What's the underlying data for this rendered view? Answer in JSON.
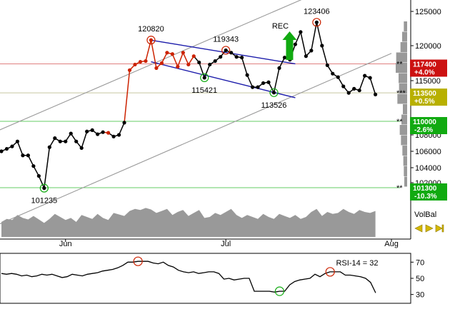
{
  "chart_data": [
    {
      "type": "line",
      "title": "",
      "xlabel": "",
      "ylabel": "",
      "ylim": [
        100000,
        126000
      ],
      "yticks": [
        102000,
        104000,
        106000,
        108000,
        110000,
        115000,
        120000,
        125000
      ],
      "x_tick_labels": [
        {
          "label": "Jun",
          "day": 13
        },
        {
          "label": "Jul",
          "day": 43
        },
        {
          "label": "Aug",
          "day": 74
        }
      ],
      "series": [
        {
          "values": [
            {
              "d": 1,
              "v": 106000
            },
            {
              "d": 2,
              "v": 106300
            },
            {
              "d": 3,
              "v": 106600
            },
            {
              "d": 4,
              "v": 107200
            },
            {
              "d": 5,
              "v": 105500
            },
            {
              "d": 6,
              "v": 105500
            },
            {
              "d": 7,
              "v": 104200
            },
            {
              "d": 8,
              "v": 102900
            },
            {
              "d": 9,
              "v": 101235
            },
            {
              "d": 10,
              "v": 106500
            },
            {
              "d": 11,
              "v": 107600
            },
            {
              "d": 12,
              "v": 107200
            },
            {
              "d": 13,
              "v": 107200
            },
            {
              "d": 14,
              "v": 108200
            },
            {
              "d": 15,
              "v": 107200
            },
            {
              "d": 16,
              "v": 106400
            },
            {
              "d": 17,
              "v": 108500
            },
            {
              "d": 18,
              "v": 108700
            },
            {
              "d": 19,
              "v": 108100
            },
            {
              "d": 20,
              "v": 108400
            },
            {
              "d": 21,
              "v": 108300
            },
            {
              "d": 22,
              "v": 107800
            },
            {
              "d": 23,
              "v": 108000
            },
            {
              "d": 24,
              "v": 109800
            },
            {
              "d": 25,
              "v": 116500
            },
            {
              "d": 26,
              "v": 117300
            },
            {
              "d": 27,
              "v": 117700
            },
            {
              "d": 28,
              "v": 117800
            },
            {
              "d": 29,
              "v": 120820
            },
            {
              "d": 30,
              "v": 116800
            },
            {
              "d": 31,
              "v": 117500
            },
            {
              "d": 32,
              "v": 119000
            },
            {
              "d": 33,
              "v": 118800
            },
            {
              "d": 34,
              "v": 117000
            },
            {
              "d": 35,
              "v": 119000
            },
            {
              "d": 36,
              "v": 117300
            },
            {
              "d": 37,
              "v": 118500
            },
            {
              "d": 38,
              "v": 117600
            },
            {
              "d": 39,
              "v": 115421
            },
            {
              "d": 40,
              "v": 117300
            },
            {
              "d": 41,
              "v": 117800
            },
            {
              "d": 42,
              "v": 118400
            },
            {
              "d": 43,
              "v": 119343
            },
            {
              "d": 44,
              "v": 119000
            },
            {
              "d": 45,
              "v": 118400
            },
            {
              "d": 46,
              "v": 118300
            },
            {
              "d": 47,
              "v": 115800
            },
            {
              "d": 48,
              "v": 114200
            },
            {
              "d": 49,
              "v": 114200
            },
            {
              "d": 50,
              "v": 114700
            },
            {
              "d": 51,
              "v": 114800
            },
            {
              "d": 52,
              "v": 113526
            },
            {
              "d": 53,
              "v": 116800
            },
            {
              "d": 54,
              "v": 118300
            },
            {
              "d": 55,
              "v": 118000
            },
            {
              "d": 56,
              "v": 120200
            },
            {
              "d": 57,
              "v": 122000
            },
            {
              "d": 58,
              "v": 118500
            },
            {
              "d": 59,
              "v": 119300
            },
            {
              "d": 60,
              "v": 123406
            },
            {
              "d": 61,
              "v": 120000
            },
            {
              "d": 62,
              "v": 117200
            },
            {
              "d": 63,
              "v": 116000
            },
            {
              "d": 64,
              "v": 115500
            },
            {
              "d": 65,
              "v": 114300
            },
            {
              "d": 66,
              "v": 113500
            },
            {
              "d": 67,
              "v": 114000
            },
            {
              "d": 68,
              "v": 113800
            },
            {
              "d": 69,
              "v": 115700
            },
            {
              "d": 70,
              "v": 115400
            },
            {
              "d": 71,
              "v": 113300
            }
          ],
          "red_segments": [
            [
              20,
              21
            ],
            [
              24,
              37
            ]
          ]
        }
      ],
      "annotations": [
        {
          "text": "120820",
          "d": 29,
          "v": 120820,
          "marker": "red-circle",
          "pos": "above"
        },
        {
          "text": "119343",
          "d": 43,
          "v": 119343,
          "marker": "red-circle",
          "pos": "above"
        },
        {
          "text": "123406",
          "d": 60,
          "v": 123406,
          "marker": "red-circle",
          "pos": "above"
        },
        {
          "text": "101235",
          "d": 9,
          "v": 101235,
          "marker": "green-circle",
          "pos": "below"
        },
        {
          "text": "115421",
          "d": 39,
          "v": 115421,
          "marker": "green-circle",
          "pos": "below"
        },
        {
          "text": "113526",
          "d": 52,
          "v": 113526,
          "marker": "green-circle",
          "pos": "below"
        },
        {
          "text": "REC",
          "d": 54,
          "v": 121500,
          "marker": "green-up-arrow",
          "pos": "above"
        }
      ],
      "horizontal_levels": [
        {
          "v": 117400,
          "color": "#e08080",
          "label": "117400",
          "sub": "+4.0%",
          "tag_color": "#cc1111",
          "stars": "**"
        },
        {
          "v": 113500,
          "color": "#c8c8a0",
          "label": "113500",
          "sub": "+0.5%",
          "tag_color": "#b8b000",
          "stars": "***"
        },
        {
          "v": 110000,
          "color": "#66cc66",
          "label": "110000",
          "sub": "-2.6%",
          "tag_color": "#11aa11",
          "stars": "**"
        },
        {
          "v": 101300,
          "color": "#66cc66",
          "label": "101300",
          "sub": "-10.3%",
          "tag_color": "#11aa11",
          "stars": "**"
        }
      ],
      "trend_lines": [
        {
          "color": "#999999",
          "from": {
            "d": 0,
            "v": 108500
          },
          "to": {
            "d": 58,
            "v": 127000
          }
        },
        {
          "color": "#999999",
          "from": {
            "d": 0,
            "v": 96000
          },
          "to": {
            "d": 74,
            "v": 118900
          }
        },
        {
          "color": "#1a1aaa",
          "from": {
            "d": 29,
            "v": 120800
          },
          "to": {
            "d": 56,
            "v": 117400
          }
        },
        {
          "color": "#1a1aaa",
          "from": {
            "d": 29,
            "v": 117700
          },
          "to": {
            "d": 56,
            "v": 112900
          }
        }
      ]
    },
    {
      "type": "area",
      "name": "VolBal",
      "label": "VolBal",
      "values": [
        30,
        36,
        34,
        44,
        38,
        35,
        42,
        35,
        28,
        36,
        46,
        40,
        34,
        38,
        30,
        44,
        40,
        36,
        46,
        38,
        34,
        48,
        45,
        42,
        52,
        56,
        54,
        58,
        55,
        48,
        52,
        56,
        44,
        50,
        54,
        42,
        48,
        54,
        38,
        40,
        48,
        44,
        50,
        56,
        44,
        38,
        44,
        40,
        36,
        46,
        40,
        36,
        46,
        42,
        38,
        44,
        36,
        40,
        50,
        56,
        42,
        50,
        46,
        48,
        56,
        50,
        46,
        54,
        50,
        48,
        52
      ]
    },
    {
      "type": "line",
      "title": "RSI-14 = 32",
      "ylim": [
        20,
        80
      ],
      "yticks": [
        30,
        50,
        70
      ],
      "values": [
        56,
        55,
        56,
        55,
        53,
        54,
        52,
        53,
        55,
        54,
        55,
        53,
        51,
        52,
        55,
        54,
        53,
        55,
        56,
        57,
        59,
        60,
        61,
        63,
        66,
        70,
        70,
        71,
        71,
        71,
        69,
        68,
        70,
        66,
        64,
        60,
        58,
        57,
        58,
        56,
        57,
        58,
        58,
        56,
        49,
        50,
        48,
        49,
        50,
        50,
        34,
        34,
        34,
        34,
        33,
        34,
        34,
        42,
        46,
        48,
        49,
        50,
        55,
        52,
        56,
        58,
        58,
        58,
        54,
        54,
        53,
        52,
        50,
        45,
        32
      ],
      "markers": [
        {
          "i": 27,
          "type": "red-circle"
        },
        {
          "i": 55,
          "type": "green-circle"
        },
        {
          "i": 65,
          "type": "red-circle"
        }
      ]
    }
  ],
  "colors": {
    "price_line": "#000000",
    "price_up_segment": "#cc2200",
    "trend_gray": "#999999",
    "channel_blue": "#1a1aaa",
    "volume_fill": "#999999",
    "volume_profile": "#999999",
    "signal_green": "#11aa11",
    "marker_red": "#cc2200",
    "marker_green": "#11aa11",
    "nav_arrow": "#d4b800"
  },
  "right_panel": {
    "volume_profile": [
      8,
      15,
      22,
      40,
      42,
      30,
      28,
      35,
      12,
      18,
      25,
      20,
      14,
      10,
      8,
      6
    ],
    "nav_arrows": [
      "arrow-left-icon",
      "arrow-right-icon",
      "arrow-right-end-icon"
    ]
  }
}
